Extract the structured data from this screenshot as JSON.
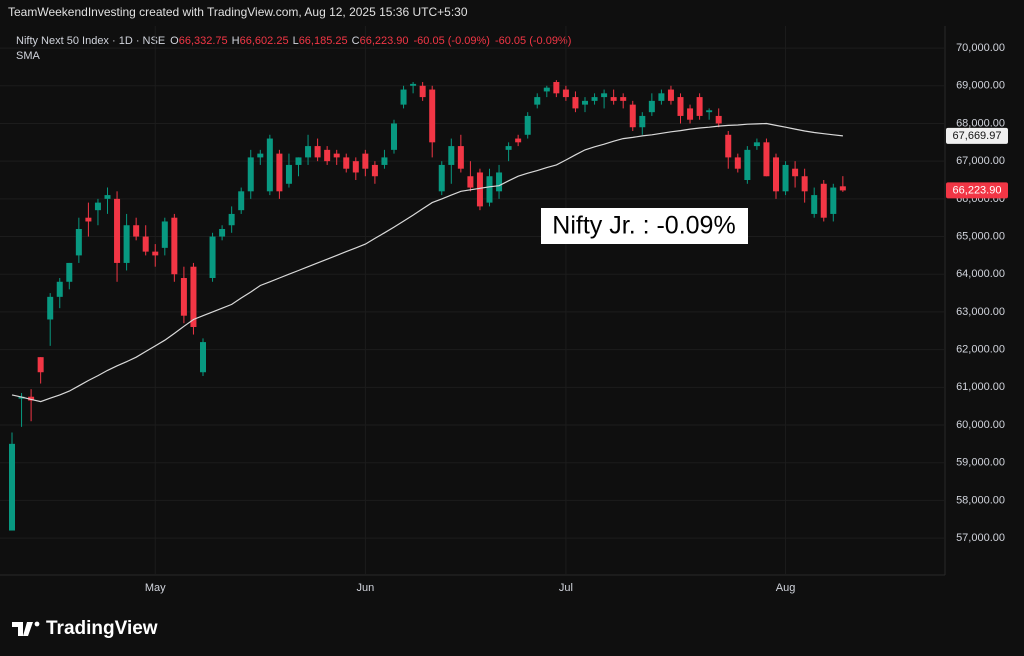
{
  "header": {
    "credit": "TeamWeekendInvesting created with TradingView.com, Aug 12, 2025 15:36 UTC+5:30",
    "brand": "TradingView"
  },
  "chart_data": {
    "type": "candlestick",
    "symbol": "Nifty Next 50 Index · 1D · NSE",
    "legend_fields": [
      {
        "key": "O",
        "value": "66,332.75"
      },
      {
        "key": "H",
        "value": "66,602.25"
      },
      {
        "key": "L",
        "value": "66,185.25"
      },
      {
        "key": "C",
        "value": "66,223.90"
      }
    ],
    "changes": [
      "-60.05 (-0.09%)",
      "-60.05 (-0.09%)"
    ],
    "indicator_name": "SMA",
    "annotation": "Nifty Jr. : -0.09%",
    "up_color": "#089981",
    "down_color": "#f23645",
    "sma_color": "#d9d9d9",
    "last_price_label": "66,223.90",
    "sma_price_label": "67,669.97",
    "categories": [
      null,
      null,
      null,
      null,
      null,
      null,
      null,
      null,
      null,
      null,
      null,
      null,
      null,
      null,
      null,
      "May",
      null,
      null,
      null,
      null,
      null,
      null,
      null,
      null,
      null,
      null,
      null,
      null,
      null,
      null,
      null,
      null,
      null,
      null,
      null,
      null,
      null,
      "Jun",
      null,
      null,
      null,
      null,
      null,
      null,
      null,
      null,
      null,
      null,
      null,
      null,
      null,
      null,
      null,
      null,
      null,
      null,
      null,
      null,
      "Jul",
      null,
      null,
      null,
      null,
      null,
      null,
      null,
      null,
      null,
      null,
      null,
      null,
      null,
      null,
      null,
      null,
      null,
      null,
      null,
      null,
      null,
      null,
      "Aug",
      null,
      null,
      null,
      null,
      null,
      null
    ],
    "open": [
      57200,
      60700,
      60750,
      61800,
      62800,
      63400,
      63800,
      64500,
      65500,
      65700,
      66000,
      66000,
      64300,
      65300,
      65000,
      64600,
      64700,
      65500,
      63900,
      64200,
      61400,
      63900,
      65000,
      65300,
      65700,
      66200,
      67100,
      66200,
      67200,
      66400,
      66900,
      67100,
      67400,
      67300,
      67200,
      67100,
      67000,
      67200,
      66900,
      66900,
      67300,
      68500,
      69000,
      69000,
      68900,
      66200,
      66900,
      67400,
      66600,
      66700,
      65900,
      66200,
      67300,
      67600,
      67700,
      68500,
      68850,
      69100,
      68900,
      68700,
      68500,
      68600,
      68700,
      68700,
      68700,
      68500,
      67900,
      68300,
      68600,
      68900,
      68700,
      68400,
      68700,
      68300,
      68200,
      67700,
      67100,
      66500,
      67400,
      67500,
      67100,
      66200,
      66800,
      66600,
      65600,
      66400,
      65600,
      66332.75
    ],
    "high": [
      59800,
      60850,
      60950,
      61800,
      63500,
      63900,
      64300,
      65500,
      65900,
      66000,
      66300,
      66200,
      65600,
      65500,
      65300,
      64800,
      65500,
      65600,
      64200,
      64300,
      62300,
      65100,
      65300,
      65800,
      66300,
      67300,
      67300,
      67700,
      67300,
      67200,
      67100,
      67700,
      67600,
      67400,
      67300,
      67200,
      67100,
      67300,
      67000,
      67300,
      68100,
      69000,
      69100,
      69100,
      69000,
      67000,
      67600,
      67700,
      67000,
      66800,
      66800,
      66900,
      67500,
      67700,
      68300,
      68800,
      69000,
      69150,
      69000,
      68850,
      68700,
      68800,
      68900,
      68900,
      68800,
      68600,
      68300,
      68800,
      68900,
      69000,
      68800,
      68500,
      68800,
      68400,
      68400,
      67800,
      67200,
      67400,
      67600,
      67600,
      67200,
      67000,
      67000,
      66800,
      66300,
      66500,
      66400,
      66602.25
    ],
    "low": [
      57200,
      59950,
      60100,
      61100,
      62100,
      63100,
      63600,
      64300,
      65000,
      65300,
      65600,
      63800,
      64100,
      64900,
      64500,
      64200,
      64500,
      63800,
      62700,
      62400,
      61300,
      63800,
      64900,
      65100,
      65600,
      66000,
      66900,
      66100,
      66000,
      66300,
      66600,
      66900,
      67000,
      66900,
      66900,
      66700,
      66500,
      66600,
      66400,
      66800,
      67200,
      68400,
      68800,
      68600,
      67100,
      66100,
      66400,
      66700,
      66200,
      65700,
      65800,
      66000,
      67000,
      67400,
      67600,
      68400,
      68700,
      68700,
      68600,
      68300,
      68300,
      68500,
      68400,
      68500,
      68400,
      67800,
      67700,
      68200,
      68500,
      68500,
      68000,
      68000,
      68100,
      68100,
      67900,
      66800,
      66700,
      66400,
      67300,
      66600,
      66000,
      66100,
      66300,
      65900,
      65500,
      65400,
      65400,
      66185.25
    ],
    "close": [
      59500,
      60750,
      60650,
      61400,
      63400,
      63800,
      64300,
      65200,
      65400,
      65900,
      66100,
      64300,
      65300,
      65000,
      64600,
      64500,
      65400,
      64000,
      62900,
      62600,
      62200,
      65000,
      65200,
      65600,
      66200,
      67100,
      67200,
      67600,
      66200,
      66900,
      67100,
      67400,
      67100,
      67000,
      67100,
      66800,
      66700,
      66800,
      66600,
      67100,
      68000,
      68900,
      69050,
      68700,
      67500,
      66900,
      67400,
      66800,
      66300,
      65800,
      66600,
      66700,
      67400,
      67500,
      68200,
      68700,
      68950,
      68800,
      68700,
      68400,
      68600,
      68700,
      68800,
      68600,
      68600,
      67900,
      68200,
      68600,
      68800,
      68600,
      68200,
      68100,
      68200,
      68350,
      68000,
      67100,
      66800,
      67300,
      67500,
      66600,
      66200,
      66900,
      66600,
      66200,
      66100,
      65500,
      66300,
      66223.9
    ],
    "sma": [
      60800,
      60740,
      60680,
      60620,
      60710,
      60800,
      60900,
      61040,
      61180,
      61310,
      61450,
      61570,
      61680,
      61800,
      61950,
      62100,
      62250,
      62430,
      62620,
      62800,
      62900,
      63000,
      63100,
      63200,
      63370,
      63530,
      63700,
      63800,
      63900,
      64000,
      64100,
      64200,
      64300,
      64400,
      64500,
      64600,
      64700,
      64800,
      64950,
      65100,
      65250,
      65410,
      65570,
      65740,
      65900,
      66000,
      66100,
      66200,
      66240,
      66280,
      66320,
      66350,
      66480,
      66600,
      66680,
      66750,
      66830,
      66900,
      67030,
      67170,
      67300,
      67380,
      67450,
      67530,
      67600,
      67630,
      67670,
      67700,
      67740,
      67780,
      67810,
      67850,
      67880,
      67900,
      67930,
      67950,
      67960,
      67980,
      67990,
      68000,
      67950,
      67900,
      67850,
      67800,
      67760,
      67730,
      67700,
      67669.97
    ],
    "ylim": [
      56100,
      70480
    ],
    "yticks": [
      {
        "value": 57000,
        "label": "57,000.00"
      },
      {
        "value": 58000,
        "label": "58,000.00"
      },
      {
        "value": 59000,
        "label": "59,000.00"
      },
      {
        "value": 60000,
        "label": "60,000.00"
      },
      {
        "value": 61000,
        "label": "61,000.00"
      },
      {
        "value": 62000,
        "label": "62,000.00"
      },
      {
        "value": 63000,
        "label": "63,000.00"
      },
      {
        "value": 64000,
        "label": "64,000.00"
      },
      {
        "value": 65000,
        "label": "65,000.00"
      },
      {
        "value": 66000,
        "label": "66,000.00"
      },
      {
        "value": 67000,
        "label": "67,000.00"
      },
      {
        "value": 68000,
        "label": "68,000.00"
      },
      {
        "value": 69000,
        "label": "69,000.00"
      },
      {
        "value": 70000,
        "label": "70,000.00"
      }
    ],
    "grid": true
  }
}
